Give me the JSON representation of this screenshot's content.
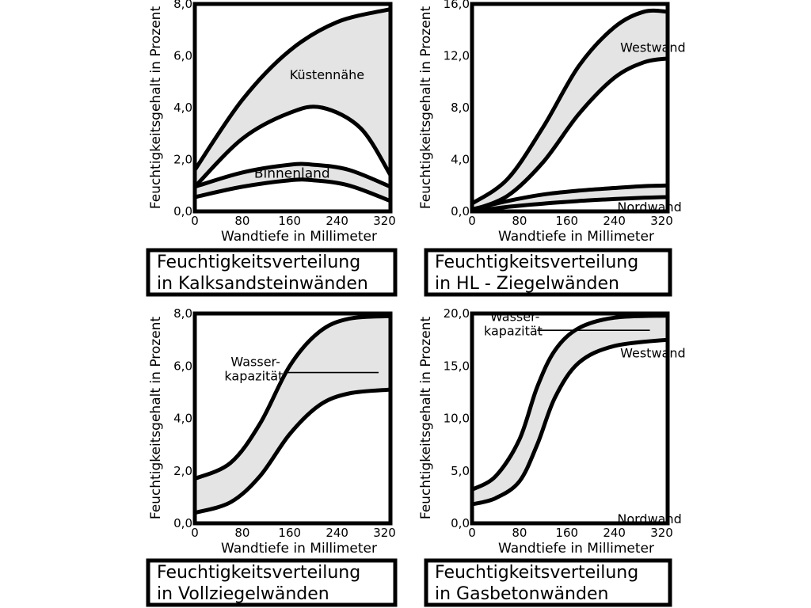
{
  "colors": {
    "band_fill": "#e4e4e4",
    "stroke": "#000000",
    "background": "#ffffff"
  },
  "chart_data": [
    {
      "type": "area",
      "title": "Feuchtigkeitsverteilung in Kalksandsteinwänden",
      "caption_lines": [
        "Feuchtigkeitsverteilung",
        "in Kalksandsteinwänden"
      ],
      "xlabel": "Wandtiefe in Millimeter",
      "ylabel": "Feuchtigkeitsgehalt in Prozent",
      "xlim": [
        0,
        330
      ],
      "ylim": [
        0,
        8
      ],
      "xticks": [
        "0",
        "80",
        "160",
        "240",
        "320"
      ],
      "yticks": [
        "0,0",
        "2,0",
        "4,0",
        "6,0",
        "8,0"
      ],
      "bands": [
        {
          "name": "Küstennähe",
          "upper": {
            "x": [
              0,
              80,
              160,
              240,
              330
            ],
            "y": [
              1.6,
              4.3,
              6.2,
              7.3,
              7.8
            ]
          },
          "lower": {
            "x": [
              0,
              80,
              160,
              215,
              280,
              330
            ],
            "y": [
              0.95,
              2.8,
              3.8,
              4.0,
              3.2,
              1.4
            ]
          }
        },
        {
          "name": "Binnenland",
          "upper": {
            "x": [
              0,
              80,
              160,
              200,
              260,
              330
            ],
            "y": [
              0.95,
              1.5,
              1.8,
              1.8,
              1.6,
              0.95
            ]
          },
          "lower": {
            "x": [
              0,
              80,
              160,
              200,
              260,
              330
            ],
            "y": [
              0.55,
              0.95,
              1.2,
              1.2,
              1.0,
              0.4
            ]
          }
        }
      ],
      "annotations": [
        {
          "text": "Küstennähe",
          "x": 160,
          "y": 5.1
        },
        {
          "text": "Binnenland",
          "x": 100,
          "y": 1.3
        }
      ]
    },
    {
      "type": "area",
      "title": "Feuchtigkeitsverteilung in HL - Ziegelwänden",
      "caption_lines": [
        "Feuchtigkeitsverteilung",
        "in HL - Ziegelwänden"
      ],
      "xlabel": "Wandtiefe in Millimeter",
      "ylabel": "Feuchtigkeitsgehalt in Prozent",
      "xlim": [
        0,
        330
      ],
      "ylim": [
        0,
        16
      ],
      "xticks": [
        "0",
        "80",
        "160",
        "240",
        "320"
      ],
      "yticks": [
        "0,0",
        "4,0",
        "8,0",
        "12,0",
        "16,0"
      ],
      "bands": [
        {
          "name": "Westwand",
          "upper": {
            "x": [
              0,
              60,
              120,
              180,
              240,
              290,
              330
            ],
            "y": [
              0.6,
              2.5,
              6.5,
              11.2,
              14.2,
              15.4,
              15.4
            ]
          },
          "lower": {
            "x": [
              0,
              60,
              120,
              180,
              240,
              290,
              330
            ],
            "y": [
              0.1,
              1.2,
              3.8,
              7.5,
              10.3,
              11.5,
              11.8
            ]
          }
        },
        {
          "name": "Nordwand",
          "upper": {
            "x": [
              0,
              60,
              120,
              180,
              240,
              290,
              330
            ],
            "y": [
              0.15,
              0.8,
              1.3,
              1.6,
              1.8,
              1.95,
              2.0
            ]
          },
          "lower": {
            "x": [
              0,
              60,
              120,
              180,
              240,
              290,
              330
            ],
            "y": [
              0.0,
              0.35,
              0.6,
              0.8,
              0.95,
              1.05,
              1.1
            ]
          }
        }
      ],
      "annotations": [
        {
          "text": "Westwand",
          "x": 250,
          "y": 12.3
        },
        {
          "text": "Nordwand",
          "x": 245,
          "y": 0.0
        }
      ]
    },
    {
      "type": "area",
      "title": "Feuchtigkeitsverteilung in Vollziegelwänden",
      "caption_lines": [
        "Feuchtigkeitsverteilung",
        "in Vollziegelwänden"
      ],
      "xlabel": "Wandtiefe in Millimeter",
      "ylabel": "Feuchtigkeitsgehalt in Prozent",
      "xlim": [
        0,
        330
      ],
      "ylim": [
        0,
        8
      ],
      "xticks": [
        "0",
        "80",
        "160",
        "240",
        "320"
      ],
      "yticks": [
        "0,0",
        "2,0",
        "4,0",
        "6,0",
        "8,0"
      ],
      "bands": [
        {
          "name": "",
          "upper": {
            "x": [
              0,
              60,
              110,
              160,
              210,
              260,
              330
            ],
            "y": [
              1.7,
              2.3,
              3.8,
              6.0,
              7.3,
              7.8,
              7.9
            ]
          },
          "lower": {
            "x": [
              0,
              60,
              110,
              160,
              210,
              260,
              330
            ],
            "y": [
              0.4,
              0.8,
              1.8,
              3.4,
              4.5,
              4.95,
              5.1
            ]
          }
        }
      ],
      "reference_lines": [
        {
          "x0": 150,
          "x1": 310,
          "y": 5.75
        }
      ],
      "annotations": [
        {
          "lines": [
            "Wasser-",
            "kapazität"
          ],
          "x": 50,
          "y": 6.0
        }
      ]
    },
    {
      "type": "area",
      "title": "Feuchtigkeitsverteilung in Gasbetonwänden",
      "caption_lines": [
        "Feuchtigkeitsverteilung",
        "in Gasbetonwänden"
      ],
      "xlabel": "Wandtiefe in Millimeter",
      "ylabel": "Feuchtigkeitsgehalt in Prozent",
      "xlim": [
        0,
        330
      ],
      "ylim": [
        0,
        20
      ],
      "xticks": [
        "0",
        "80",
        "160",
        "240",
        "320"
      ],
      "yticks": [
        "0,0",
        "5,0",
        "10,0",
        "15,0",
        "20,0"
      ],
      "bands": [
        {
          "name": "Westwand",
          "upper": {
            "x": [
              0,
              40,
              80,
              110,
              140,
              180,
              240,
              330
            ],
            "y": [
              3.2,
              4.5,
              8.0,
              13.0,
              16.5,
              18.6,
              19.6,
              19.8
            ]
          },
          "lower": {
            "x": [
              0,
              40,
              80,
              110,
              140,
              180,
              240,
              330
            ],
            "y": [
              1.8,
              2.4,
              4.0,
              7.5,
              12.0,
              15.3,
              16.9,
              17.5
            ]
          }
        }
      ],
      "reference_lines": [
        {
          "x0": 110,
          "x1": 300,
          "y": 18.4
        }
      ],
      "annotations": [
        {
          "lines": [
            "Wasser-",
            "kapazität"
          ],
          "x": 20,
          "y": 19.3
        },
        {
          "text": "Westwand",
          "x": 250,
          "y": 15.8
        },
        {
          "text": "Nordwand",
          "x": 245,
          "y": 0.0
        }
      ]
    }
  ]
}
